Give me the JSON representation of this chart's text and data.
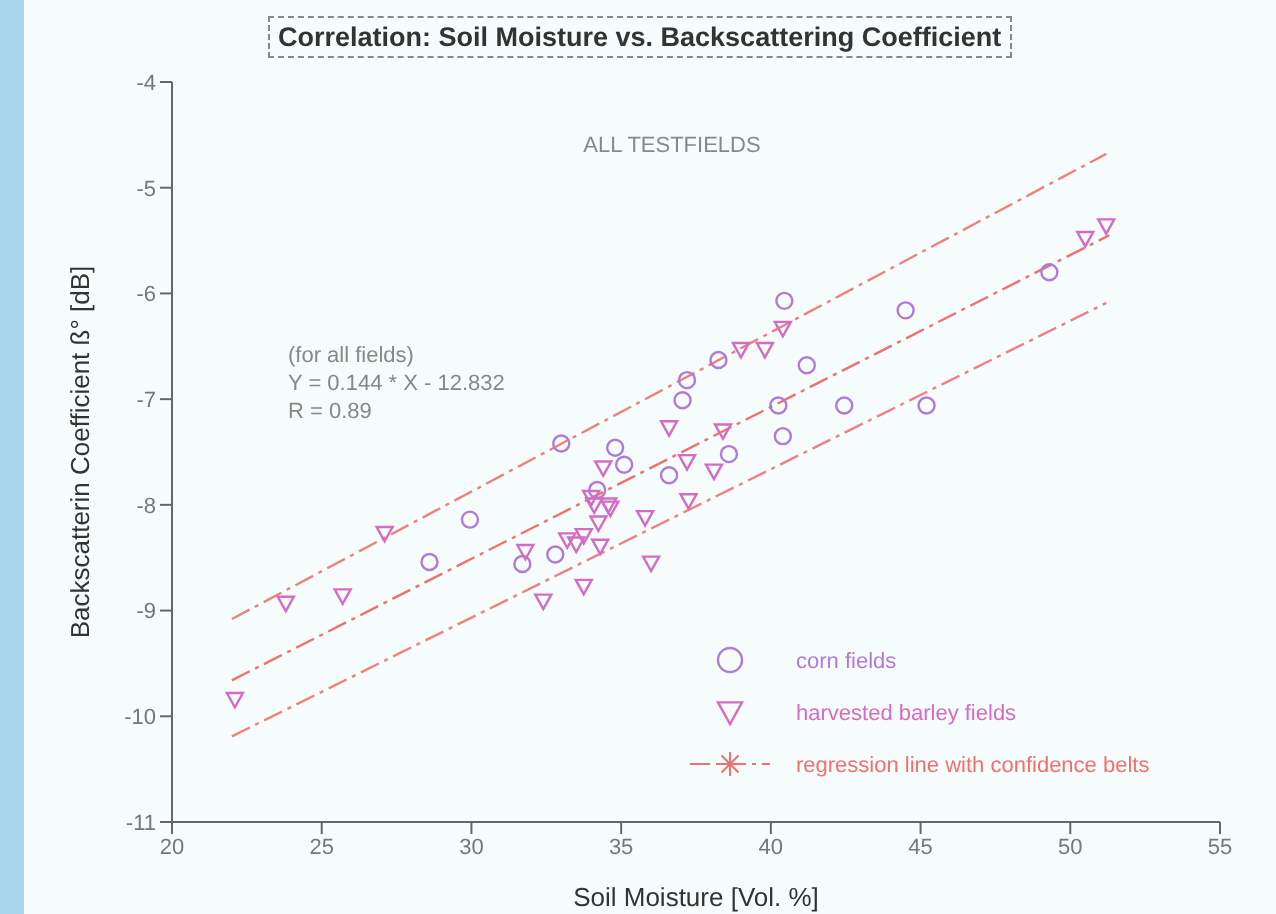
{
  "chart_data": {
    "type": "scatter",
    "title": "Correlation: Soil Moisture vs. Backscattering Coefficient",
    "subtitle": "ALL TESTFIELDS",
    "xlabel": "Soil Moisture [Vol. %]",
    "ylabel": "Backscatterin Coefficient ß° [dB]",
    "annotations": [
      "(for all fields)",
      "Y = 0.144 * X - 12.832",
      "R = 0.89"
    ],
    "xlim": [
      20,
      55
    ],
    "xticks": [
      20,
      25,
      30,
      35,
      40,
      45,
      50,
      55
    ],
    "ylim": [
      -11,
      -4
    ],
    "yticks": [
      -11,
      -10,
      -9,
      -8,
      -7,
      -6,
      -5,
      -4
    ],
    "grid": false,
    "legend": "bottom right",
    "series": [
      {
        "name": "corn fields",
        "type": "scatter",
        "marker": "circle",
        "color": "#b07ad8",
        "x": [
          28.6,
          29.95,
          31.7,
          32.8,
          33.0,
          34.2,
          34.8,
          35.1,
          36.6,
          37.05,
          37.2,
          38.25,
          38.6,
          40.25,
          40.4,
          40.45,
          41.2,
          42.45,
          44.5,
          45.2,
          49.3
        ],
        "values": [
          -8.54,
          -8.14,
          -8.56,
          -8.47,
          -7.42,
          -7.86,
          -7.46,
          -7.62,
          -7.72,
          -7.01,
          -6.82,
          -6.63,
          -7.52,
          -7.06,
          -7.35,
          -6.07,
          -6.68,
          -7.06,
          -6.16,
          -7.06,
          -5.8
        ]
      },
      {
        "name": "harvested barley fields",
        "type": "scatter",
        "marker": "triangle",
        "color": "#d46cc4",
        "x": [
          22.1,
          23.8,
          25.7,
          27.1,
          31.8,
          32.4,
          33.2,
          33.5,
          33.75,
          33.75,
          34.0,
          34.1,
          34.24,
          34.3,
          34.57,
          34.64,
          34.4,
          35.8,
          36.0,
          36.6,
          37.2,
          37.25,
          38.1,
          38.4,
          39.0,
          39.8,
          40.4,
          50.5,
          51.2
        ],
        "values": [
          -9.84,
          -8.93,
          -8.86,
          -8.27,
          -8.44,
          -8.91,
          -8.33,
          -8.37,
          -8.29,
          -8.77,
          -7.93,
          -8.0,
          -8.17,
          -8.39,
          -8.0,
          -8.03,
          -7.65,
          -8.12,
          -8.55,
          -7.27,
          -7.59,
          -7.96,
          -7.68,
          -7.3,
          -6.53,
          -6.53,
          -6.33,
          -5.48,
          -5.36
        ]
      },
      {
        "name": "regression line with confidence belts",
        "type": "line",
        "marker": "none",
        "line_style": "dashed",
        "color": "#f07070",
        "x": [
          22,
          51.3
        ],
        "values": [
          -9.66,
          -5.45
        ]
      },
      {
        "type": "line",
        "marker": "none",
        "line_style": "dashed",
        "color": "#f08080",
        "x": [
          22,
          51.2
        ],
        "values": [
          -9.08,
          -4.68
        ]
      },
      {
        "type": "line",
        "marker": "none",
        "line_style": "dashed",
        "color": "#f08080",
        "x": [
          22,
          51.2
        ],
        "values": [
          -10.19,
          -6.09
        ]
      }
    ]
  }
}
